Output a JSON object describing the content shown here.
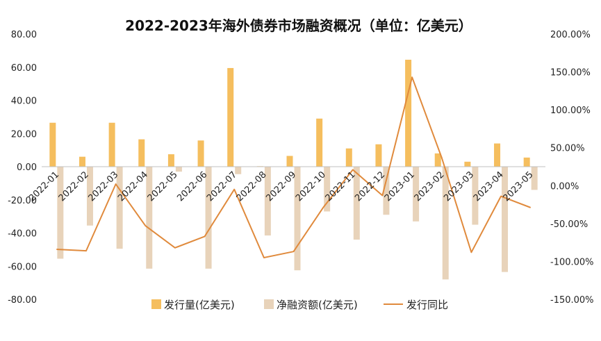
{
  "chart_data": {
    "type": "bar",
    "title": "2022-2023年海外债券市场融资概况（单位：亿美元）",
    "categories": [
      "2022-01",
      "2022-02",
      "2022-03",
      "2022-04",
      "2022-05",
      "2022-06",
      "2022-07",
      "2022-08",
      "2022-09",
      "2022-10",
      "2022-11",
      "2022-12",
      "2023-01",
      "2023-02",
      "2023-03",
      "2023-04",
      "2023-05"
    ],
    "series": [
      {
        "name": "发行量(亿美元)",
        "axis": "left",
        "kind": "bar",
        "color": "#F5BE5E",
        "values": [
          26.5,
          6,
          26.5,
          16.5,
          7.5,
          15.8,
          59.5,
          0.3,
          6.5,
          29,
          11,
          13.5,
          64.5,
          8,
          3,
          14,
          5.5
        ]
      },
      {
        "name": "净融资额(亿美元)",
        "axis": "left",
        "kind": "bar",
        "color": "#E8D3BA",
        "values": [
          -55.5,
          -35.5,
          -49.5,
          -61.5,
          -3,
          -61.5,
          -4.5,
          -41.5,
          -62.5,
          -27,
          -44,
          -29,
          -33,
          -68,
          -35,
          -63.5,
          -14
        ]
      },
      {
        "name": "发行同比",
        "axis": "right",
        "kind": "line",
        "color": "#E08A3C",
        "values": [
          -84,
          -86,
          2,
          -53,
          -82,
          -67,
          -5,
          -95,
          -87,
          -29,
          21,
          -13,
          143,
          37,
          -88,
          -14,
          -29
        ]
      }
    ],
    "left_axis": {
      "min": -80,
      "max": 80,
      "step": 20,
      "tick_labels": [
        "80.00",
        "60.00",
        "40.00",
        "20.00",
        "0.00",
        "-20.00",
        "-40.00",
        "-60.00",
        "-80.00"
      ]
    },
    "right_axis": {
      "min": -150,
      "max": 200,
      "step": 50,
      "tick_labels": [
        "200.00%",
        "150.00%",
        "100.00%",
        "50.00%",
        "0.00%",
        "-50.00%",
        "-100.00%",
        "-150.00%"
      ]
    },
    "grid": false,
    "legend_position": "bottom"
  }
}
